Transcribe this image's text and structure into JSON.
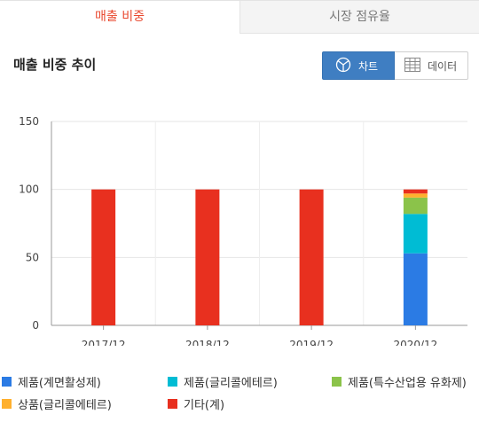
{
  "tabs": [
    {
      "label": "매출 비중"
    },
    {
      "label": "시장 점유율"
    }
  ],
  "section": {
    "title": "매출 비중 추이"
  },
  "view_toggle": {
    "chart_label": "차트",
    "table_label": "데이터"
  },
  "chart_data": {
    "type": "bar",
    "stacked": true,
    "categories": [
      "2017/12",
      "2018/12",
      "2019/12",
      "2020/12"
    ],
    "ylim": [
      0,
      150
    ],
    "yticks": [
      0,
      50,
      100,
      150
    ],
    "grid": true,
    "legend_position": "bottom",
    "series": [
      {
        "name": "제품(계면활성제)",
        "color": "#2b7be4",
        "values": [
          0,
          0,
          0,
          53
        ]
      },
      {
        "name": "제품(글리콜에테르)",
        "color": "#00bcd4",
        "values": [
          0,
          0,
          0,
          29
        ]
      },
      {
        "name": "제품(특수산업용 유화제)",
        "color": "#8bc34a",
        "values": [
          0,
          0,
          0,
          12
        ]
      },
      {
        "name": "상품(글리콜에테르)",
        "color": "#ffb02e",
        "values": [
          0,
          0,
          0,
          3
        ]
      },
      {
        "name": "기타(계)",
        "color": "#e8301f",
        "values": [
          100,
          100,
          100,
          3
        ]
      }
    ]
  },
  "colors": {
    "accent": "#e9492f",
    "toggle_active": "#3f7ec2"
  }
}
